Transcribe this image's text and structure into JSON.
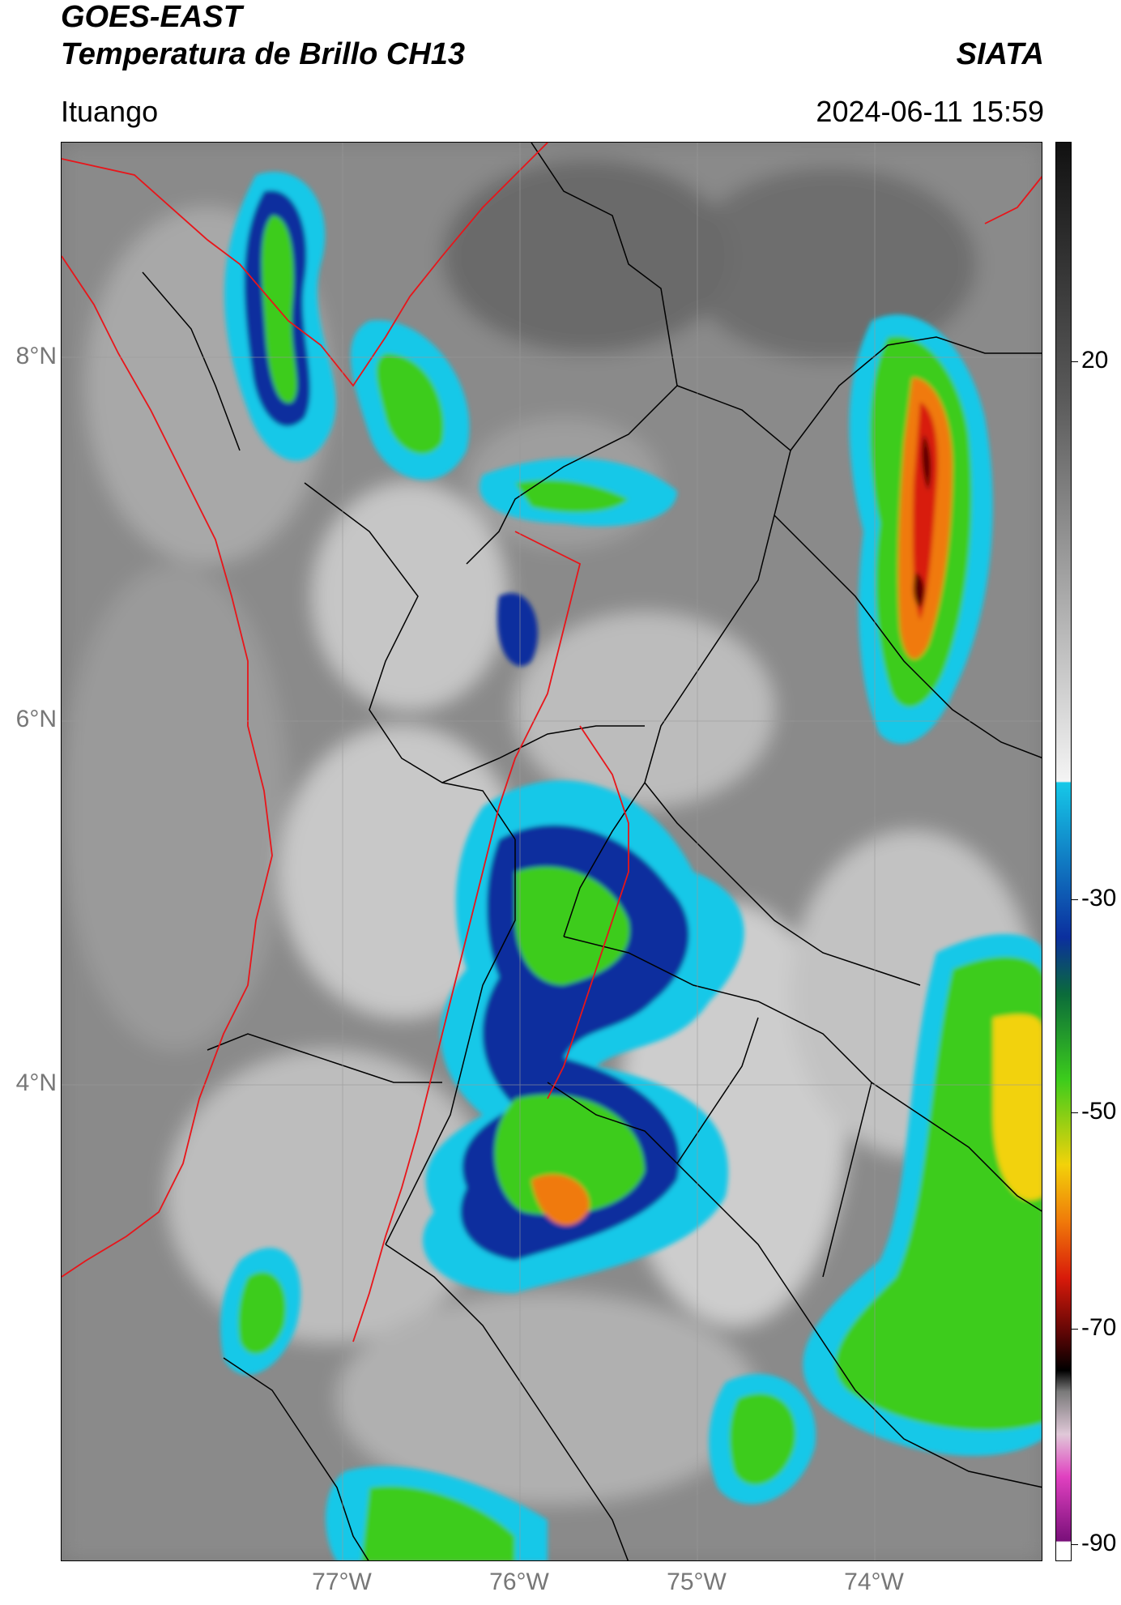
{
  "header": {
    "satellite": "GOES-EAST",
    "product": "Temperatura de Brillo CH13",
    "agency": "SIATA",
    "location": "Ituango",
    "timestamp": "2024-06-11 15:59"
  },
  "axes": {
    "lat_labels": [
      "8°N",
      "6°N",
      "4°N"
    ],
    "lon_labels": [
      "77°W",
      "76°W",
      "75°W",
      "74°W"
    ]
  },
  "colorbar": {
    "tick_labels": [
      "20",
      "-30",
      "-50",
      "-70",
      "-90"
    ],
    "colors": {
      "warm_gray_light": "#e6e6e6",
      "warm_gray_dark": "#5a5a5a",
      "cyan": "#16c8e8",
      "blue": "#0b2f9e",
      "dark_green": "#0b6b3a",
      "green": "#3ccc1c",
      "yellow": "#f2d20a",
      "orange": "#f07a0a",
      "red": "#d81a0a",
      "dark_red": "#5a0505",
      "black": "#000000",
      "magenta": "#e040c0",
      "purple": "#7a107a"
    }
  },
  "map_colors": {
    "political_border": "#e8151a",
    "admin_border": "#000000"
  }
}
